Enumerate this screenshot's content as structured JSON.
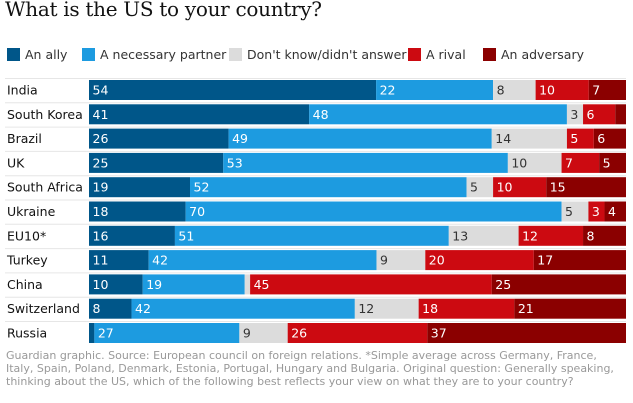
{
  "title": "What is the US to your country?",
  "footnote": "Guardian graphic. Source: European council on foreign relations. *Simple average across Germany, France, Italy, Spain, Poland, Denmark, Estonia, Portugal, Hungary and Bulgaria. Original question: Generally speaking, thinking about the US, which of the following best reflects your view on what they are to your country?",
  "chart_data": {
    "type": "bar",
    "orientation": "horizontal",
    "stacked": true,
    "normalized": true,
    "title": "What is the US to your country?",
    "legend_position": "top",
    "categories": [
      "India",
      "South Korea",
      "Brazil",
      "UK",
      "South Africa",
      "Ukraine",
      "EU10*",
      "Turkey",
      "China",
      "Switzerland",
      "Russia"
    ],
    "series": [
      {
        "name": "An ally",
        "color": "#005689",
        "values": [
          54,
          41,
          26,
          25,
          19,
          18,
          16,
          11,
          10,
          8,
          1
        ],
        "labels": [
          "54",
          "41",
          "26",
          "25",
          "19",
          "18",
          "16",
          "11",
          "10",
          "8",
          ""
        ]
      },
      {
        "name": "A necessary partner",
        "color": "#1d9be0",
        "values": [
          22,
          48,
          49,
          53,
          52,
          70,
          51,
          42,
          19,
          42,
          27
        ],
        "labels": [
          "22",
          "48",
          "49",
          "53",
          "52",
          "70",
          "51",
          "42",
          "19",
          "42",
          "27"
        ]
      },
      {
        "name": "Don't know/didn't answer",
        "color": "#dcdcdc",
        "values": [
          8,
          3,
          14,
          10,
          5,
          5,
          13,
          9,
          1,
          12,
          9
        ],
        "labels": [
          "8",
          "3",
          "14",
          "10",
          "5",
          "5",
          "13",
          "9",
          "",
          "12",
          "9"
        ]
      },
      {
        "name": "A rival",
        "color": "#cc0a11",
        "values": [
          10,
          6,
          5,
          7,
          10,
          3,
          12,
          20,
          45,
          18,
          26
        ],
        "labels": [
          "10",
          "6",
          "5",
          "7",
          "10",
          "3",
          "12",
          "20",
          "45",
          "18",
          "26"
        ]
      },
      {
        "name": "An adversary",
        "color": "#8b0000",
        "values": [
          7,
          2,
          6,
          5,
          15,
          4,
          8,
          17,
          25,
          21,
          37
        ],
        "labels": [
          "7",
          "",
          "6",
          "5",
          "15",
          "4",
          "8",
          "17",
          "25",
          "21",
          "37"
        ]
      }
    ]
  }
}
